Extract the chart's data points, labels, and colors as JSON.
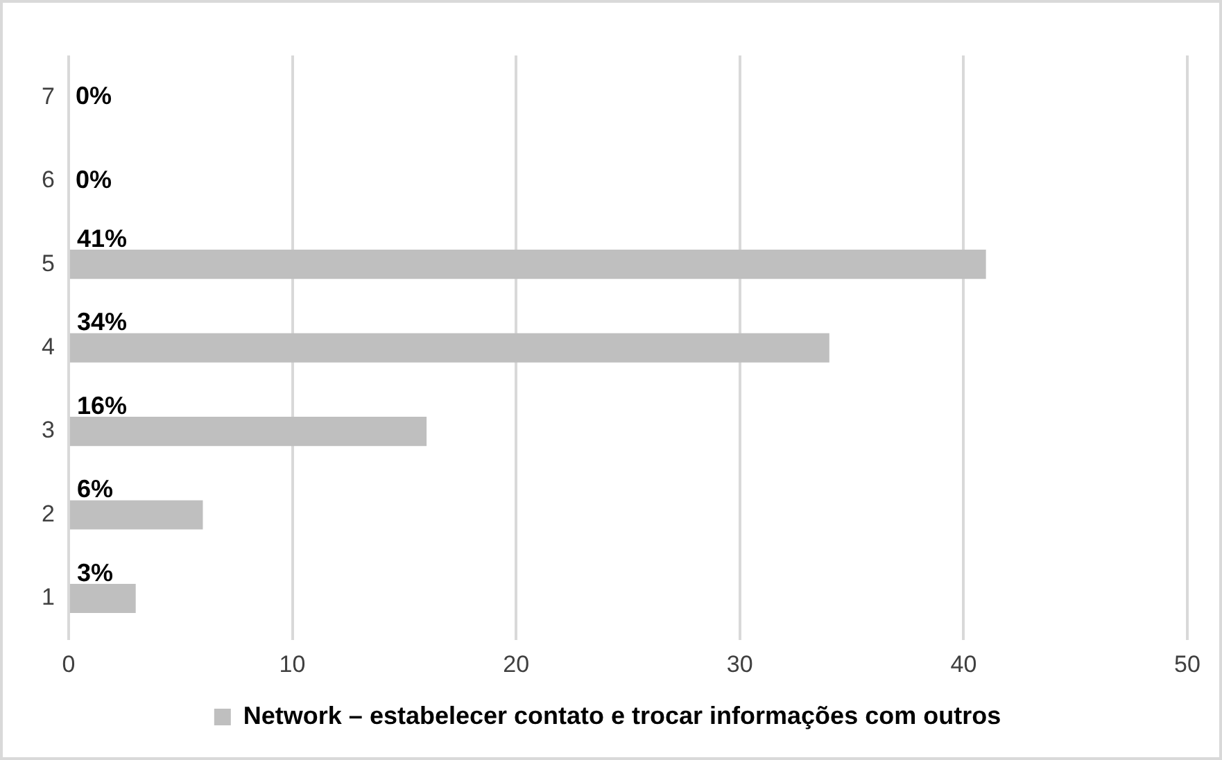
{
  "chart_data": {
    "type": "bar",
    "orientation": "horizontal",
    "categories": [
      "7",
      "6",
      "5",
      "4",
      "3",
      "2",
      "1"
    ],
    "series": [
      {
        "name": "Network – estabelecer contato e trocar informações com outros",
        "color": "#bfbfbf",
        "values": [
          0,
          0,
          41,
          34,
          16,
          6,
          3
        ],
        "value_labels": [
          "0%",
          "0%",
          "41%",
          "34%",
          "16%",
          "6%",
          "3%"
        ]
      }
    ],
    "xlim": [
      0,
      50
    ],
    "xticks": [
      0,
      10,
      20,
      30,
      40,
      50
    ],
    "grid": "x",
    "legend": "bottom"
  }
}
